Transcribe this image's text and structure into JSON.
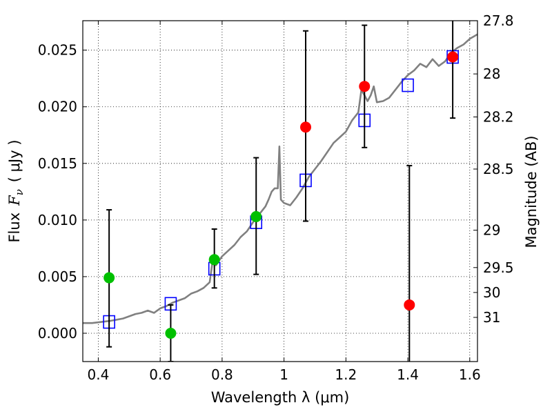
{
  "chart_data": {
    "type": "scatter",
    "xlabel": "Wavelength  λ (μm)",
    "ylabel_text": "Flux",
    "ylabel_symbol": "F",
    "ylabel_subscript": "ν",
    "ylabel_unit": "( μJy )",
    "y2label": "Magnitude (AB)",
    "xlim": [
      0.35,
      1.625
    ],
    "ylim": [
      -0.0025,
      0.0276
    ],
    "grid": true,
    "legend": "none",
    "x_ticks": [
      0.4,
      0.6,
      0.8,
      1.0,
      1.2,
      1.4,
      1.6
    ],
    "x_tick_labels": [
      "0.4",
      "0.6",
      "0.8",
      "1",
      "1.2",
      "1.4",
      "1.6"
    ],
    "y_ticks": [
      0.0,
      0.005,
      0.01,
      0.015,
      0.02,
      0.025
    ],
    "y_tick_labels": [
      "0.000",
      "0.005",
      "0.010",
      "0.015",
      "0.020",
      "0.025"
    ],
    "y2_ticks": [
      {
        "label": "27.8",
        "flux": 0.0276
      },
      {
        "label": "28",
        "flux": 0.0229
      },
      {
        "label": "28.2",
        "flux": 0.0191
      },
      {
        "label": "28.5",
        "flux": 0.0145
      },
      {
        "label": "29",
        "flux": 0.0091
      },
      {
        "label": "29.5",
        "flux": 0.0058
      },
      {
        "label": "30",
        "flux": 0.0036
      },
      {
        "label": "31",
        "flux": 0.0014
      }
    ],
    "model_spectrum": {
      "color": "#808080",
      "x": [
        0.35,
        0.38,
        0.41,
        0.44,
        0.46,
        0.48,
        0.5,
        0.52,
        0.54,
        0.56,
        0.58,
        0.6,
        0.62,
        0.64,
        0.66,
        0.68,
        0.7,
        0.72,
        0.74,
        0.76,
        0.77,
        0.78,
        0.8,
        0.82,
        0.84,
        0.86,
        0.88,
        0.9,
        0.92,
        0.94,
        0.95,
        0.96,
        0.97,
        0.98,
        0.985,
        0.99,
        1.0,
        1.02,
        1.04,
        1.06,
        1.08,
        1.1,
        1.12,
        1.14,
        1.16,
        1.18,
        1.2,
        1.22,
        1.24,
        1.25,
        1.26,
        1.27,
        1.28,
        1.29,
        1.3,
        1.32,
        1.34,
        1.36,
        1.38,
        1.4,
        1.42,
        1.44,
        1.46,
        1.48,
        1.5,
        1.52,
        1.54,
        1.56,
        1.58,
        1.6,
        1.625
      ],
      "y": [
        0.0009,
        0.0009,
        0.001,
        0.0011,
        0.0012,
        0.0013,
        0.0015,
        0.0017,
        0.0018,
        0.002,
        0.0018,
        0.0022,
        0.0024,
        0.0027,
        0.0029,
        0.0031,
        0.0035,
        0.0037,
        0.004,
        0.0045,
        0.0065,
        0.006,
        0.0068,
        0.0073,
        0.0078,
        0.0085,
        0.009,
        0.0098,
        0.0105,
        0.0112,
        0.0118,
        0.0125,
        0.0128,
        0.0128,
        0.0165,
        0.0118,
        0.0115,
        0.0113,
        0.012,
        0.0128,
        0.0138,
        0.0145,
        0.0152,
        0.016,
        0.0168,
        0.0173,
        0.0178,
        0.0188,
        0.0195,
        0.0215,
        0.021,
        0.0205,
        0.021,
        0.0218,
        0.0204,
        0.0205,
        0.0208,
        0.0215,
        0.0222,
        0.0228,
        0.0232,
        0.0238,
        0.0235,
        0.0242,
        0.0236,
        0.024,
        0.0248,
        0.0252,
        0.0255,
        0.026,
        0.0264
      ]
    },
    "model_bands": {
      "marker": "open-square",
      "color": "#0000ff",
      "points": [
        {
          "x": 0.435,
          "y": 0.001
        },
        {
          "x": 0.634,
          "y": 0.0026
        },
        {
          "x": 0.775,
          "y": 0.0057
        },
        {
          "x": 0.91,
          "y": 0.0098
        },
        {
          "x": 1.07,
          "y": 0.0135
        },
        {
          "x": 1.26,
          "y": 0.0188
        },
        {
          "x": 1.4,
          "y": 0.0219
        },
        {
          "x": 1.545,
          "y": 0.0244
        }
      ]
    },
    "series": [
      {
        "color": "#00c000",
        "points": [
          {
            "x": 0.435,
            "y": 0.0049,
            "err_low": 0.0061,
            "err_high": 0.006
          },
          {
            "x": 0.634,
            "y": 0.0,
            "err_low": 0.0025,
            "err_high": 0.0025
          },
          {
            "x": 0.775,
            "y": 0.0065,
            "err_low": 0.0025,
            "err_high": 0.0027
          },
          {
            "x": 0.91,
            "y": 0.0103,
            "err_low": 0.0051,
            "err_high": 0.0052
          }
        ]
      },
      {
        "color": "#ff0000",
        "points": [
          {
            "x": 1.07,
            "y": 0.0182,
            "err_low": 0.0083,
            "err_high": 0.0085
          },
          {
            "x": 1.26,
            "y": 0.0218,
            "err_low": 0.0054,
            "err_high": 0.0054
          },
          {
            "x": 1.405,
            "y": 0.0025,
            "err_low": 0.0055,
            "err_high": 0.0123
          },
          {
            "x": 1.545,
            "y": 0.0244,
            "err_low": 0.0054,
            "err_high": 0.0045
          }
        ]
      }
    ]
  }
}
